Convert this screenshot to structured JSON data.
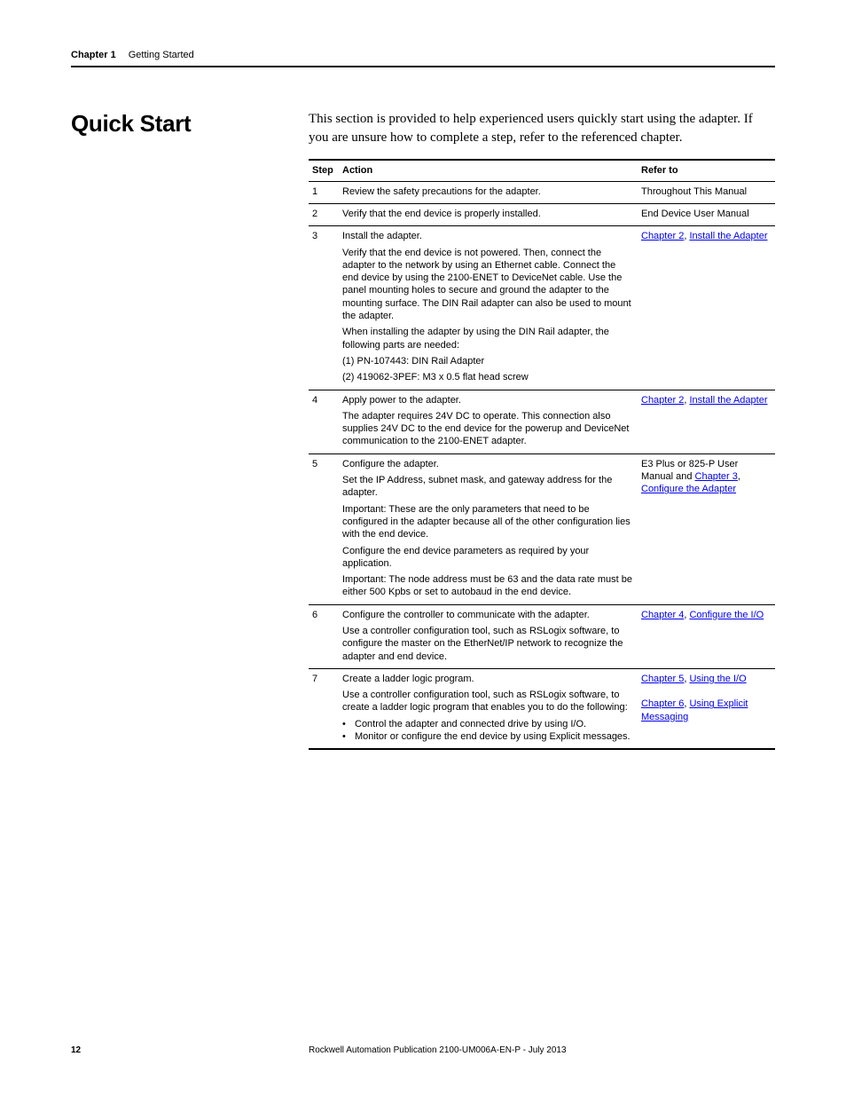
{
  "header": {
    "chapter_label": "Chapter 1",
    "chapter_title": "Getting Started"
  },
  "section_title": "Quick Start",
  "intro": "This section is provided to help experienced users quickly start using the adapter. If you are unsure how to complete a step, refer to the referenced chapter.",
  "table": {
    "headers": {
      "step": "Step",
      "action": "Action",
      "refer": "Refer to"
    },
    "rows": [
      {
        "step": "1",
        "action": [
          {
            "type": "p",
            "text": "Review the safety precautions for the adapter."
          }
        ],
        "refer": [
          {
            "type": "text",
            "text": "Throughout This Manual"
          }
        ]
      },
      {
        "step": "2",
        "action": [
          {
            "type": "p",
            "text": "Verify that the end device is properly installed."
          }
        ],
        "refer": [
          {
            "type": "text",
            "text": "End Device User Manual"
          }
        ]
      },
      {
        "step": "3",
        "action": [
          {
            "type": "p",
            "text": "Install the adapter."
          },
          {
            "type": "p",
            "text": "Verify that the end device is not powered. Then, connect the adapter to the network by using an Ethernet cable. Connect the end device by using the 2100-ENET to DeviceNet cable. Use the panel mounting holes to secure and ground the adapter to the mounting surface. The DIN Rail adapter can also be used to mount the adapter."
          },
          {
            "type": "p",
            "text": "When installing the adapter by using the DIN Rail adapter, the following parts are needed:"
          },
          {
            "type": "p",
            "text": "(1) PN-107443: DIN Rail Adapter"
          },
          {
            "type": "p",
            "text": "(2) 419062-3PEF: M3 x 0.5 flat head screw"
          }
        ],
        "refer": [
          {
            "type": "link",
            "text": "Chapter 2"
          },
          {
            "type": "text",
            "text": ", "
          },
          {
            "type": "link",
            "text": "Install the Adapter"
          }
        ]
      },
      {
        "step": "4",
        "action": [
          {
            "type": "p",
            "text": "Apply power to the adapter."
          },
          {
            "type": "p",
            "text": "The adapter requires 24V DC to operate. This connection also supplies 24V DC to the end device for the powerup and DeviceNet communication to the 2100-ENET adapter."
          }
        ],
        "refer": [
          {
            "type": "link",
            "text": "Chapter 2"
          },
          {
            "type": "text",
            "text": ", "
          },
          {
            "type": "link",
            "text": "Install the Adapter"
          }
        ]
      },
      {
        "step": "5",
        "action": [
          {
            "type": "p",
            "text": "Configure the adapter."
          },
          {
            "type": "p",
            "text": "Set the IP Address, subnet mask, and gateway address for the adapter."
          },
          {
            "type": "p",
            "text": "Important: These are the only parameters that need to be configured in the adapter because all of the other configuration lies with the end device."
          },
          {
            "type": "p",
            "text": "Configure the end device parameters as required by your application."
          },
          {
            "type": "p",
            "text": "Important: The node address must be 63 and the data rate must be either 500 Kpbs or set to autobaud in the end device."
          }
        ],
        "refer": [
          {
            "type": "text",
            "text": "E3 Plus or 825-P User Manual and "
          },
          {
            "type": "link",
            "text": "Chapter 3"
          },
          {
            "type": "text",
            "text": ", "
          },
          {
            "type": "link",
            "text": "Configure the Adapter"
          }
        ]
      },
      {
        "step": "6",
        "action": [
          {
            "type": "p",
            "text": "Configure the controller to communicate with the adapter."
          },
          {
            "type": "p",
            "text": "Use a controller configuration tool, such as RSLogix software, to configure the master on the EtherNet/IP network to recognize the adapter and end device."
          }
        ],
        "refer": [
          {
            "type": "link",
            "text": "Chapter 4"
          },
          {
            "type": "text",
            "text": ", "
          },
          {
            "type": "link",
            "text": "Configure the I/O"
          }
        ]
      },
      {
        "step": "7",
        "action": [
          {
            "type": "p",
            "text": "Create a ladder logic program."
          },
          {
            "type": "p",
            "text": "Use a controller configuration tool, such as RSLogix software, to create a ladder logic program that enables you to do the following:"
          },
          {
            "type": "bullet",
            "text": "Control the adapter and connected drive by using I/O."
          },
          {
            "type": "bullet",
            "text": "Monitor or configure the end device by using Explicit messages."
          }
        ],
        "refer": [
          {
            "type": "link",
            "text": "Chapter 5"
          },
          {
            "type": "text",
            "text": ", "
          },
          {
            "type": "link",
            "text": "Using the I/O"
          },
          {
            "type": "brbr"
          },
          {
            "type": "link",
            "text": "Chapter 6"
          },
          {
            "type": "text",
            "text": ", "
          },
          {
            "type": "link",
            "text": "Using Explicit Messaging"
          }
        ]
      }
    ]
  },
  "footer": {
    "page_number": "12",
    "publication": "Rockwell Automation Publication 2100-UM006A-EN-P - July 2013"
  }
}
